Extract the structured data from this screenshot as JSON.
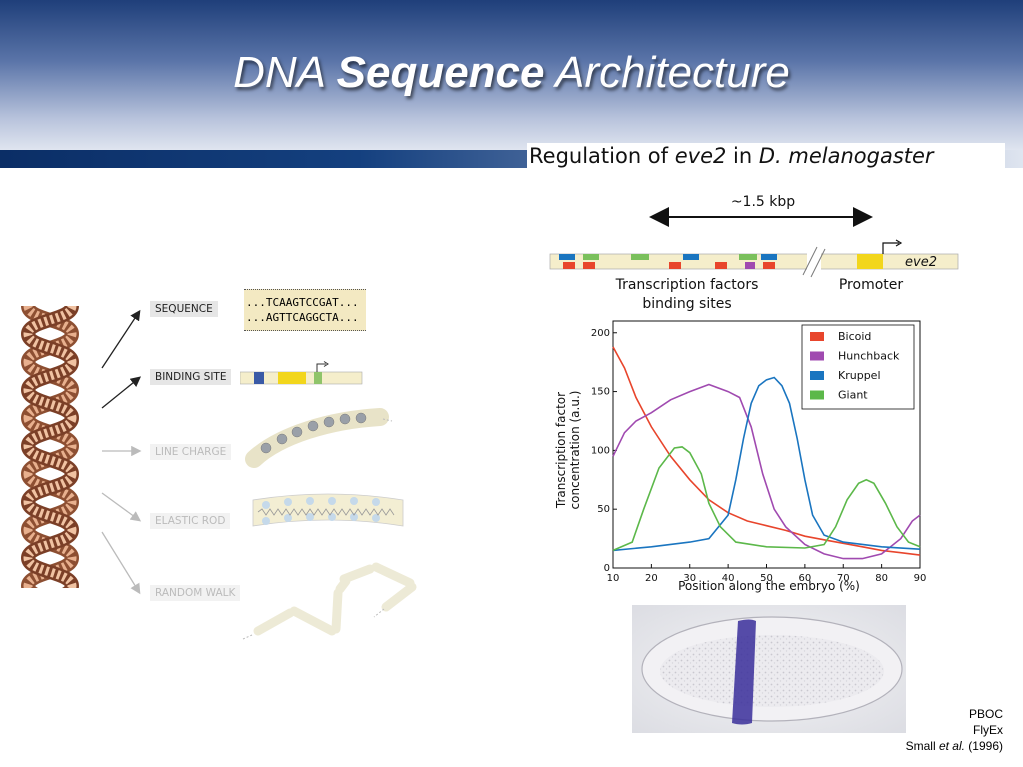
{
  "slide": {
    "title_part1": "DNA ",
    "title_bold": "Sequence",
    "title_part2": " Architecture",
    "subtitle_pre": "Regulation of ",
    "subtitle_gene": "eve2",
    "subtitle_mid": " in ",
    "subtitle_species": "D. melanogaster",
    "credits": {
      "line1": "PBOC",
      "line2": "FlyEx",
      "line3_pre": "Small ",
      "line3_italic": "et al.",
      "line3_post": " (1996)"
    }
  },
  "dna_levels": {
    "labels": [
      "SEQUENCE",
      "BINDING SITE",
      "LINE CHARGE",
      "ELASTIC ROD",
      "RANDOM WALK"
    ],
    "sequence_top": "...TCAAGTCCGAT...",
    "sequence_bottom": "...AGTTCAGGCTA...",
    "active_color": "#222222",
    "inactive_color": "#bbbbbb"
  },
  "gene_map": {
    "length_label": "~1.5 kbp",
    "tf_label_line1": "Transcription factors",
    "tf_label_line2": "binding sites",
    "promoter_label": "Promoter",
    "gene_label": "eve2"
  },
  "embryo_image": {
    "stripe_color": "#3a2e9a"
  },
  "chart_data": {
    "type": "line",
    "xlabel": "Position along the embryo (%)",
    "ylabel_line1": "Transcription factor",
    "ylabel_line2": "concentration (a.u.)",
    "xlim": [
      10,
      90
    ],
    "ylim": [
      0,
      210
    ],
    "xticks": [
      10,
      20,
      30,
      40,
      50,
      60,
      70,
      80,
      90
    ],
    "yticks": [
      0,
      50,
      100,
      150,
      200
    ],
    "legend_position": "top-right",
    "series": [
      {
        "name": "Bicoid",
        "color": "#e8452c",
        "x": [
          10,
          13,
          16,
          20,
          25,
          30,
          35,
          40,
          45,
          50,
          55,
          60,
          65,
          70,
          75,
          80,
          85,
          90
        ],
        "y": [
          188,
          170,
          145,
          120,
          95,
          75,
          58,
          47,
          40,
          36,
          32,
          27,
          24,
          21,
          18,
          15,
          13,
          11
        ]
      },
      {
        "name": "Hunchback",
        "color": "#a04ab0",
        "x": [
          10,
          13,
          16,
          20,
          25,
          30,
          35,
          40,
          43,
          46,
          49,
          52,
          55,
          60,
          65,
          70,
          75,
          80,
          85,
          88,
          90
        ],
        "y": [
          95,
          115,
          125,
          132,
          143,
          150,
          156,
          150,
          145,
          120,
          80,
          50,
          35,
          20,
          12,
          8,
          8,
          12,
          25,
          40,
          45
        ]
      },
      {
        "name": "Kruppel",
        "color": "#1a75c0",
        "x": [
          10,
          20,
          30,
          35,
          40,
          42,
          44,
          46,
          48,
          50,
          52,
          54,
          56,
          58,
          60,
          62,
          65,
          70,
          80,
          90
        ],
        "y": [
          15,
          18,
          22,
          25,
          45,
          75,
          110,
          140,
          155,
          160,
          162,
          155,
          140,
          110,
          75,
          45,
          28,
          22,
          18,
          16
        ]
      },
      {
        "name": "Giant",
        "color": "#5cb84a",
        "x": [
          10,
          15,
          18,
          22,
          26,
          28,
          30,
          33,
          35,
          38,
          42,
          50,
          60,
          65,
          68,
          71,
          74,
          76,
          78,
          81,
          84,
          87,
          90
        ],
        "y": [
          15,
          22,
          50,
          85,
          102,
          103,
          98,
          80,
          55,
          35,
          22,
          18,
          17,
          20,
          35,
          58,
          72,
          75,
          72,
          55,
          35,
          22,
          18
        ]
      }
    ]
  }
}
